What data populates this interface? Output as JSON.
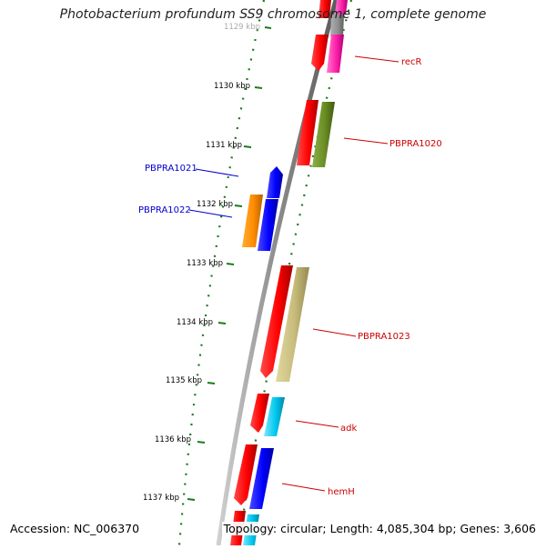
{
  "title": "Photobacterium profundum SS9 chromosome 1, complete genome",
  "footer": {
    "accession": "Accession: NC_006370",
    "summary": "Topology: circular; Length: 4,085,304 bp; Genes: 3,606"
  },
  "scale": {
    "ticks": [
      "1129 kbp",
      "1130 kbp",
      "1131 kbp",
      "1132 kbp",
      "1133 kbp",
      "1134 kbp",
      "1135 kbp",
      "1136 kbp",
      "1137 kbp"
    ]
  },
  "gene_labels": {
    "recR": "recR",
    "PBPRA1020": "PBPRA1020",
    "PBPRA1021": "PBPRA1021",
    "PBPRA1022": "PBPRA1022",
    "PBPRA1023": "PBPRA1023",
    "adk": "adk",
    "hemH": "hemH"
  },
  "colors": {
    "forward_label": "#cc0000",
    "reverse_label": "#0000cc",
    "scale": "#1a7a1a",
    "backbone": "#8c8c8c"
  }
}
